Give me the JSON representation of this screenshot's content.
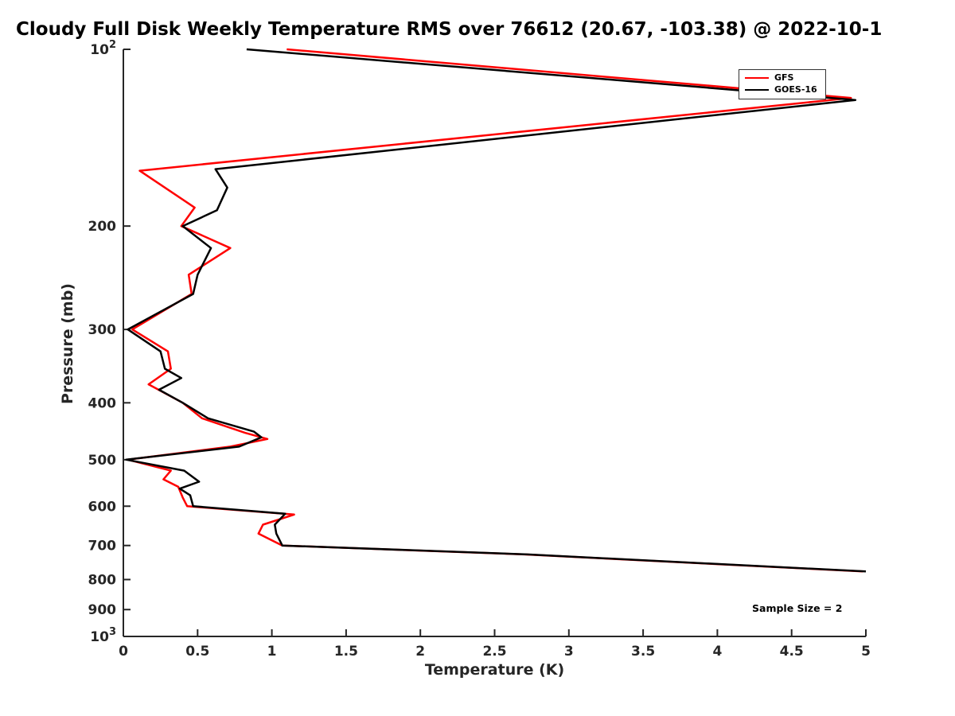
{
  "title": "Cloudy Full Disk Weekly Temperature RMS over 76612 (20.67, -103.38) @ 2022-10-1",
  "chart_data": {
    "type": "line",
    "title": "Cloudy Full Disk Weekly Temperature RMS over 76612 (20.67, -103.38) @ 2022-10-1",
    "xlabel": "Temperature (K)",
    "ylabel": "Pressure (mb)",
    "xlim": [
      0,
      5
    ],
    "ylim": [
      100,
      1000
    ],
    "y_scale": "log",
    "y_direction": "increasing-downward",
    "grid": "off",
    "axis_color": "#262626",
    "x_ticks": [
      0,
      0.5,
      1,
      1.5,
      2,
      2.5,
      3,
      3.5,
      4,
      4.5,
      5
    ],
    "y_ticks": [
      100,
      200,
      300,
      400,
      500,
      600,
      700,
      800,
      900,
      1000
    ],
    "y_tick_labels": [
      "10^2",
      "200",
      "300",
      "400",
      "500",
      "600",
      "700",
      "800",
      "900",
      "10^3"
    ],
    "legend": {
      "position": "northeast-inside",
      "entries": [
        {
          "label": "GFS",
          "color": "#ff0000"
        },
        {
          "label": "GOES-16",
          "color": "#000000"
        }
      ]
    },
    "annotation": "Sample Size = 2",
    "series": [
      {
        "name": "GFS",
        "color": "#ff0000",
        "points_format": "[pressure_mb, temperature_rms_K]",
        "points": [
          [
            100,
            1.1
          ],
          [
            121,
            4.9
          ],
          [
            161,
            0.11
          ],
          [
            186,
            0.48
          ],
          [
            200,
            0.39
          ],
          [
            218,
            0.72
          ],
          [
            242,
            0.44
          ],
          [
            261,
            0.46
          ],
          [
            300,
            0.06
          ],
          [
            327,
            0.3
          ],
          [
            350,
            0.32
          ],
          [
            372,
            0.17
          ],
          [
            400,
            0.4
          ],
          [
            425,
            0.53
          ],
          [
            450,
            0.82
          ],
          [
            461,
            0.97
          ],
          [
            475,
            0.72
          ],
          [
            500,
            0.03
          ],
          [
            522,
            0.32
          ],
          [
            540,
            0.27
          ],
          [
            556,
            0.37
          ],
          [
            580,
            0.4
          ],
          [
            600,
            0.43
          ],
          [
            620,
            1.15
          ],
          [
            645,
            0.94
          ],
          [
            668,
            0.91
          ],
          [
            700,
            1.07
          ],
          [
            725,
            2.7
          ],
          [
            775,
            4.98
          ]
        ]
      },
      {
        "name": "GOES-16",
        "color": "#000000",
        "points_format": "[pressure_mb, temperature_rms_K]",
        "points": [
          [
            100,
            0.83
          ],
          [
            122,
            4.93
          ],
          [
            160,
            0.62
          ],
          [
            172,
            0.7
          ],
          [
            188,
            0.63
          ],
          [
            200,
            0.4
          ],
          [
            218,
            0.59
          ],
          [
            242,
            0.5
          ],
          [
            261,
            0.47
          ],
          [
            300,
            0.03
          ],
          [
            327,
            0.25
          ],
          [
            350,
            0.28
          ],
          [
            363,
            0.39
          ],
          [
            380,
            0.24
          ],
          [
            400,
            0.4
          ],
          [
            425,
            0.57
          ],
          [
            448,
            0.88
          ],
          [
            458,
            0.93
          ],
          [
            475,
            0.78
          ],
          [
            500,
            0.02
          ],
          [
            522,
            0.41
          ],
          [
            545,
            0.51
          ],
          [
            560,
            0.38
          ],
          [
            575,
            0.45
          ],
          [
            600,
            0.47
          ],
          [
            618,
            1.09
          ],
          [
            645,
            1.02
          ],
          [
            668,
            1.03
          ],
          [
            700,
            1.07
          ],
          [
            725,
            2.72
          ],
          [
            775,
            5.0
          ]
        ]
      }
    ]
  }
}
